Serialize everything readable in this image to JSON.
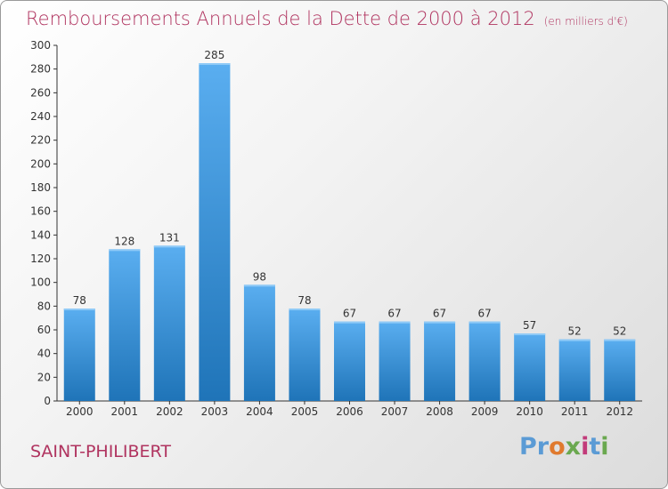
{
  "header": {
    "title": "Remboursements Annuels de la Dette de 2000 à 2012",
    "unit": "(en milliers d'€)"
  },
  "footer": {
    "place": "SAINT-PHILIBERT",
    "logo": "Proxiti"
  },
  "colors": {
    "title": "#b0335f",
    "bar_top": "#5aaef0",
    "bar_bottom": "#1f74b8",
    "axis": "#333333",
    "grid_tick": "#333333"
  },
  "chart_data": {
    "type": "bar",
    "categories": [
      "2000",
      "2001",
      "2002",
      "2003",
      "2004",
      "2005",
      "2006",
      "2007",
      "2008",
      "2009",
      "2010",
      "2011",
      "2012"
    ],
    "values": [
      78,
      128,
      131,
      285,
      98,
      78,
      67,
      67,
      67,
      67,
      57,
      52,
      52
    ],
    "title": "Remboursements Annuels de la Dette de 2000 à 2012",
    "xlabel": "",
    "ylabel": "",
    "ylim": [
      0,
      300
    ],
    "yticks": [
      0,
      20,
      40,
      60,
      80,
      100,
      120,
      140,
      160,
      180,
      200,
      220,
      240,
      260,
      280,
      300
    ],
    "data_labels": true,
    "grid": false
  }
}
